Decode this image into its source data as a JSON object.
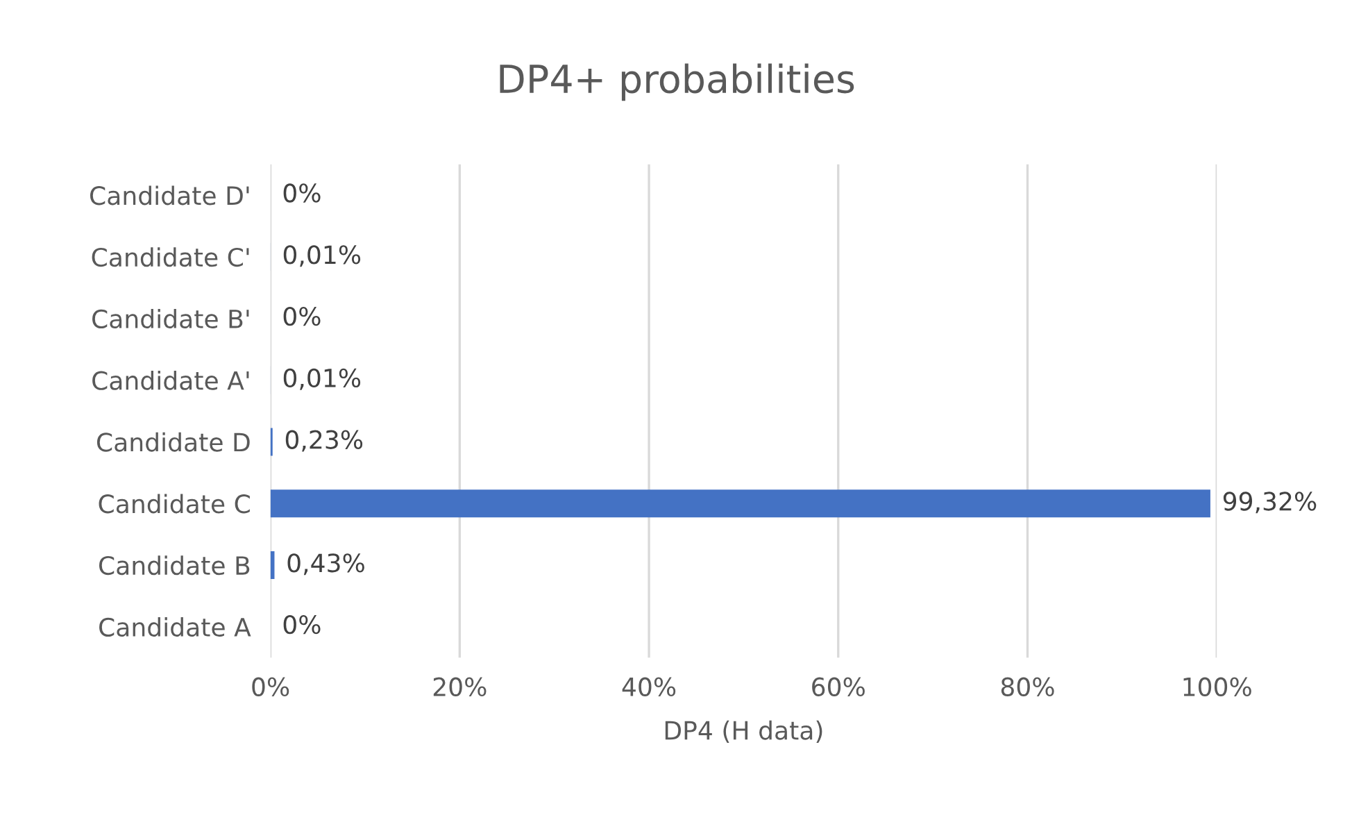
{
  "chart_data": {
    "type": "bar",
    "orientation": "horizontal",
    "title": "DP4+ probabilities",
    "xlabel": "DP4 (H data)",
    "categories": [
      "Candidate D'",
      "Candidate C'",
      "Candidate B'",
      "Candidate A'",
      "Candidate D",
      "Candidate C",
      "Candidate B",
      "Candidate A"
    ],
    "values": [
      0,
      0.01,
      0,
      0.01,
      0.23,
      99.32,
      0.43,
      0
    ],
    "value_labels": [
      "0%",
      "0,01%",
      "0%",
      "0,01%",
      "0,23%",
      "99,32%",
      "0,43%",
      "0%"
    ],
    "color": "#4472c4",
    "xlim": [
      0,
      100
    ],
    "xticks": [
      {
        "value": 0,
        "label": "0%"
      },
      {
        "value": 20,
        "label": "20%"
      },
      {
        "value": 40,
        "label": "40%"
      },
      {
        "value": 60,
        "label": "60%"
      },
      {
        "value": 80,
        "label": "80%"
      },
      {
        "value": 100,
        "label": "100%"
      }
    ],
    "grid": "x"
  }
}
